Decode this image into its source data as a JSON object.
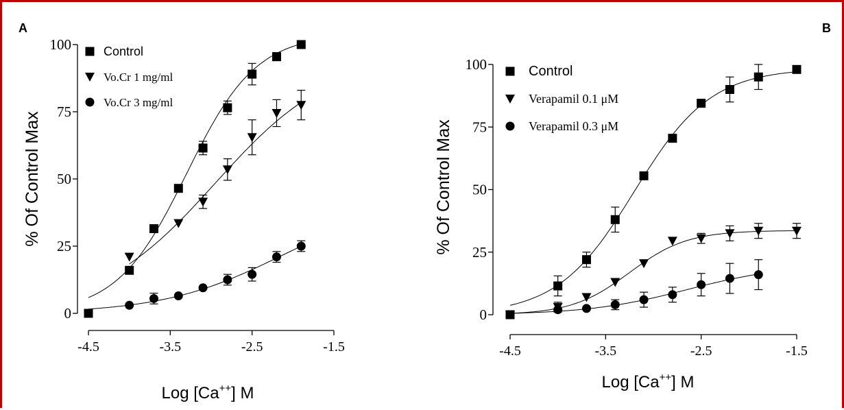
{
  "chart_data": [
    {
      "panel_label": "A",
      "type": "scatter",
      "xlabel": "Log [Ca",
      "xlabel_sup": "++",
      "xlabel_tail": "] M",
      "ylabel": "% Of Control Max",
      "xlim": [
        -4.5,
        -1.5
      ],
      "ylim": [
        0,
        100
      ],
      "xticks": [
        "-4.5",
        "-3.5",
        "-2.5",
        "-1.5"
      ],
      "yticks": [
        "0",
        "25",
        "50",
        "75",
        "100"
      ],
      "legend_position": "top-left",
      "series": [
        {
          "name": "Control",
          "marker": "square",
          "label_font": "sans",
          "x": [
            -4.5,
            -4.0,
            -3.7,
            -3.4,
            -3.1,
            -2.8,
            -2.5,
            -2.2,
            -1.9
          ],
          "y": [
            0,
            16,
            31.5,
            46.5,
            61.5,
            76.5,
            89,
            95.5,
            100
          ],
          "err": [
            0,
            0,
            0,
            0,
            2.5,
            2.5,
            4,
            1.5,
            0
          ]
        },
        {
          "name": "Vo.Cr 1 mg/ml",
          "marker": "triangle-down",
          "label_font": "serif",
          "x": [
            -4.0,
            -3.4,
            -3.1,
            -2.8,
            -2.5,
            -2.2,
            -1.9
          ],
          "y": [
            21,
            33.5,
            41.5,
            53.5,
            65.5,
            74.5,
            77.5
          ],
          "err": [
            0,
            0,
            2.5,
            4,
            6.5,
            5,
            5.5
          ]
        },
        {
          "name": "Vo.Cr 3 mg/ml",
          "marker": "circle",
          "label_font": "serif",
          "x": [
            -4.5,
            -4.0,
            -3.7,
            -3.4,
            -3.1,
            -2.8,
            -2.5,
            -2.2,
            -1.9
          ],
          "y": [
            0,
            3,
            5.5,
            6.5,
            9.5,
            12.5,
            14.5,
            21,
            25
          ],
          "err": [
            0,
            0,
            2,
            0,
            0,
            2,
            2.5,
            2,
            2
          ]
        }
      ]
    },
    {
      "panel_label": "B",
      "type": "scatter",
      "xlabel": "Log [Ca",
      "xlabel_sup": "++",
      "xlabel_tail": "] M",
      "ylabel": "% Of Control Max",
      "xlim": [
        -4.5,
        -1.5
      ],
      "ylim": [
        0,
        100
      ],
      "xticks": [
        "-4.5",
        "-3.5",
        "-2.5",
        "-1.5"
      ],
      "yticks": [
        "0",
        "25",
        "50",
        "75",
        "100"
      ],
      "legend_position": "top-left",
      "series": [
        {
          "name": "Control",
          "marker": "square",
          "label_font": "sans",
          "x": [
            -4.5,
            -4.0,
            -3.7,
            -3.4,
            -3.1,
            -2.8,
            -2.5,
            -2.2,
            -1.9,
            -1.5
          ],
          "y": [
            0,
            11.5,
            22,
            38,
            55.5,
            70.5,
            84.5,
            90,
            95,
            98
          ],
          "err": [
            0,
            4,
            3,
            5,
            0,
            0,
            0,
            5,
            5,
            0
          ]
        },
        {
          "name": "Verapamil 0.1 μM",
          "marker": "triangle-down",
          "label_font": "serif",
          "x": [
            -4.5,
            -4.0,
            -3.7,
            -3.4,
            -3.1,
            -2.8,
            -2.5,
            -2.2,
            -1.9,
            -1.5
          ],
          "y": [
            0,
            3,
            7,
            13,
            20.5,
            29.5,
            30.5,
            32.5,
            33.5,
            33.5
          ],
          "err": [
            0,
            2,
            0,
            0,
            0,
            0,
            2,
            3,
            3,
            3
          ]
        },
        {
          "name": "Verapamil 0.3 μM",
          "marker": "circle",
          "label_font": "serif",
          "x": [
            -4.5,
            -4.0,
            -3.7,
            -3.4,
            -3.1,
            -2.8,
            -2.5,
            -2.2,
            -1.9
          ],
          "y": [
            0,
            2,
            2.5,
            4,
            6,
            8,
            12,
            14.5,
            16
          ],
          "err": [
            0,
            0,
            0,
            2,
            3,
            3,
            4.5,
            6,
            6
          ]
        }
      ]
    }
  ]
}
